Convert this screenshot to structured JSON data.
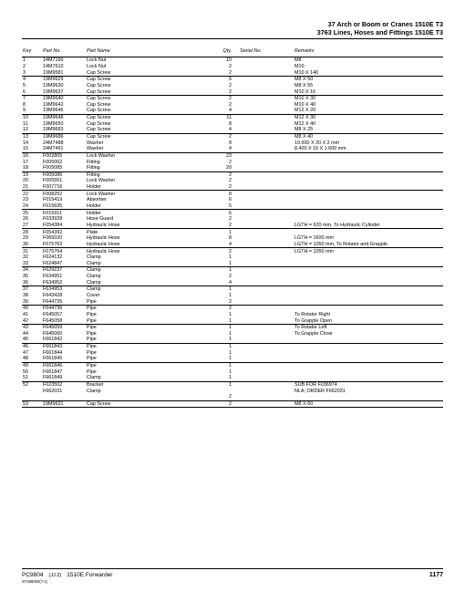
{
  "header": {
    "line1": "37 Arch or Boom or Cranes 1510E T3",
    "line2": "3763 Lines, Hoses and Fittings 1510E T3"
  },
  "columns": {
    "key": "Key",
    "partno": "Part No.",
    "partname": "Part Name",
    "qty": "Qty.",
    "serial": "Serial No.",
    "remarks": "Remarks"
  },
  "groups": [
    [
      {
        "k": "1",
        "pn": "14M7166",
        "nm": "Lock Nut",
        "q": "10",
        "r": "M8"
      },
      {
        "k": "2",
        "pn": "14M7610",
        "nm": "Lock Nut",
        "q": "2",
        "r": "M10"
      },
      {
        "k": "3",
        "pn": "19M9581",
        "nm": "Cap Screw",
        "q": "2",
        "r": "M10 X 140"
      }
    ],
    [
      {
        "k": "4",
        "pn": "19M9629",
        "nm": "Cap Screw",
        "q": "6",
        "r": "M8 X 50"
      },
      {
        "k": "5",
        "pn": "19M9630",
        "nm": "Cap Screw",
        "q": "2",
        "r": "M8 X 55"
      },
      {
        "k": "6",
        "pn": "19M9637",
        "nm": "Cap Screw",
        "q": "2",
        "r": "M10 X 16"
      }
    ],
    [
      {
        "k": "7",
        "pn": "19M9640",
        "nm": "Cap Screw",
        "q": "2",
        "r": "M10 X 30"
      },
      {
        "k": "8",
        "pn": "19M9642",
        "nm": "Cap Screw",
        "q": "2",
        "r": "M10 X 40"
      },
      {
        "k": "9",
        "pn": "19M9646",
        "nm": "Cap Screw",
        "q": "4",
        "r": "M12 X 20"
      }
    ],
    [
      {
        "k": "10",
        "pn": "19M9648",
        "nm": "Cap Screw",
        "q": "11",
        "r": "M12 X 30"
      },
      {
        "k": "11",
        "pn": "19M9650",
        "nm": "Cap Screw",
        "q": "8",
        "r": "M12 X 40"
      },
      {
        "k": "12",
        "pn": "19M9683",
        "nm": "Cap Screw",
        "q": "4",
        "r": "M8 X 25"
      }
    ],
    [
      {
        "k": "13",
        "pn": "19M9686",
        "nm": "Cap Screw",
        "q": "2",
        "r": "M8 X 40"
      },
      {
        "k": "14",
        "pn": "24M7488",
        "nm": "Washer",
        "q": "8",
        "r": "10.500 X 20 X 2 mm"
      },
      {
        "k": "15",
        "pn": "24M7491",
        "nm": "Washer",
        "q": "4",
        "r": "8.400 X 16 X 1.600 mm"
      }
    ],
    [
      {
        "k": "16",
        "pn": "F002805",
        "nm": "Lock Washer",
        "q": "23",
        "r": ""
      },
      {
        "k": "17",
        "pn": "F005062",
        "nm": "Fitting",
        "q": "2",
        "r": ""
      },
      {
        "k": "18",
        "pn": "F005085",
        "nm": "Fitting",
        "q": "20",
        "r": ""
      }
    ],
    [
      {
        "k": "19",
        "pn": "F005086",
        "nm": "Fitting",
        "q": "2",
        "r": ""
      },
      {
        "k": "20",
        "pn": "F005551",
        "nm": "Lock Washer",
        "q": "2",
        "r": ""
      },
      {
        "k": "21",
        "pn": "F007716",
        "nm": "Holder",
        "q": "2",
        "r": ""
      }
    ],
    [
      {
        "k": "22",
        "pn": "F008252",
        "nm": "Lock Washer",
        "q": "8",
        "r": ""
      },
      {
        "k": "23",
        "pn": "F015419",
        "nm": "Absorber",
        "q": "6",
        "r": ""
      },
      {
        "k": "24",
        "pn": "F015635",
        "nm": "Holder",
        "q": "5",
        "r": ""
      }
    ],
    [
      {
        "k": "25",
        "pn": "F015911",
        "nm": "Holder",
        "q": "6",
        "r": ""
      },
      {
        "k": "26",
        "pn": "F033928",
        "nm": "Hose Guard",
        "q": "2",
        "r": ""
      },
      {
        "k": "27",
        "pn": "F054384",
        "nm": "Hydraulic Hose",
        "q": "2",
        "r": "LGTH = 620 mm, To Hydraulic Cylinder"
      }
    ],
    [
      {
        "k": "28",
        "pn": "F054392",
        "nm": "Plate",
        "q": "1",
        "r": ""
      },
      {
        "k": "29",
        "pn": "F065020",
        "nm": "Hydraulic Hose",
        "q": "8",
        "r": "LGTH = 1600 mm"
      },
      {
        "k": "30",
        "pn": "F075763",
        "nm": "Hydraulic Hose",
        "q": "4",
        "r": "LGTH = 1050 mm, To Rotator and Grapple"
      }
    ],
    [
      {
        "k": "31",
        "pn": "F075764",
        "nm": "Hydraulic Hose",
        "q": "2",
        "r": "LGTH = 1050 mm"
      },
      {
        "k": "32",
        "pn": "F624132",
        "nm": "Clamp",
        "q": "1",
        "r": ""
      },
      {
        "k": "33",
        "pn": "F624847",
        "nm": "Clamp",
        "q": "1",
        "r": ""
      }
    ],
    [
      {
        "k": "34",
        "pn": "F629237",
        "nm": "Clamp",
        "q": "1",
        "r": ""
      },
      {
        "k": "35",
        "pn": "F634951",
        "nm": "Clamp",
        "q": "2",
        "r": ""
      },
      {
        "k": "36",
        "pn": "F634952",
        "nm": "Clamp",
        "q": "4",
        "r": ""
      }
    ],
    [
      {
        "k": "37",
        "pn": "F634953",
        "nm": "Clamp",
        "q": "1",
        "r": ""
      },
      {
        "k": "38",
        "pn": "F643428",
        "nm": "Cover",
        "q": "1",
        "r": ""
      },
      {
        "k": "39",
        "pn": "F644735",
        "nm": "Pipe",
        "q": "2",
        "r": ""
      }
    ],
    [
      {
        "k": "40",
        "pn": "F644736",
        "nm": "Pipe",
        "q": "2",
        "r": ""
      },
      {
        "k": "41",
        "pn": "F645057",
        "nm": "Pipe",
        "q": "1",
        "r": "To Rotator Right"
      },
      {
        "k": "42",
        "pn": "F645058",
        "nm": "Pipe",
        "q": "1",
        "r": "To Grapple Open"
      }
    ],
    [
      {
        "k": "43",
        "pn": "F645059",
        "nm": "Pipe",
        "q": "1",
        "r": "To Rotator Left"
      },
      {
        "k": "44",
        "pn": "F645060",
        "nm": "Pipe",
        "q": "1",
        "r": "To Grapple Close"
      },
      {
        "k": "45",
        "pn": "F661842",
        "nm": "Pipe",
        "q": "1",
        "r": ""
      }
    ],
    [
      {
        "k": "46",
        "pn": "F661843",
        "nm": "Pipe",
        "q": "1",
        "r": ""
      },
      {
        "k": "47",
        "pn": "F661844",
        "nm": "Pipe",
        "q": "1",
        "r": ""
      },
      {
        "k": "48",
        "pn": "F661845",
        "nm": "Pipe",
        "q": "1",
        "r": ""
      }
    ],
    [
      {
        "k": "49",
        "pn": "F661846",
        "nm": "Pipe",
        "q": "1",
        "r": ""
      },
      {
        "k": "50",
        "pn": "F661847",
        "nm": "Pipe",
        "q": "1",
        "r": ""
      },
      {
        "k": "51",
        "pn": "F661849",
        "nm": "Clamp",
        "q": "1",
        "r": ""
      }
    ],
    [
      {
        "k": "52",
        "pn": "F023502",
        "nm": "Bracket",
        "q": "1",
        "r": "SUB FOR F036974"
      },
      {
        "k": "",
        "pn": "F662031",
        "nm": "Clamp",
        "q": "",
        "r": "NLA; ORDER F662031"
      },
      {
        "k": "",
        "pn": "",
        "nm": "",
        "q": "2",
        "r": ""
      }
    ],
    [
      {
        "k": "53",
        "pn": "19M9631",
        "nm": "Cap Screw",
        "q": "2",
        "r": "M8 X 60"
      }
    ]
  ],
  "footer": {
    "pc": "PC9804",
    "jj": "(JJ.2)",
    "model": "1510E Forwarder",
    "tiny": "ST458050(7-1)",
    "page": "1177"
  }
}
